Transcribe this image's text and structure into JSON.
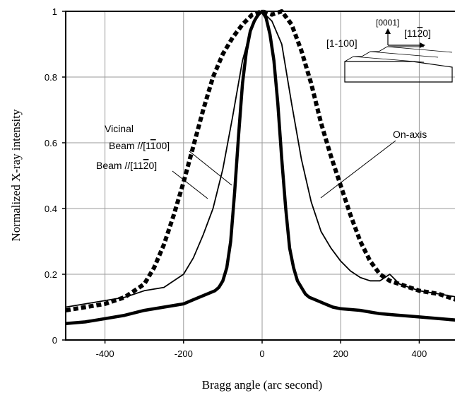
{
  "chart_data": {
    "type": "line",
    "xlabel": "Bragg angle (arc second)",
    "ylabel": "Normalized   X-ray   intensity",
    "xlim": [
      -500,
      500
    ],
    "ylim": [
      0,
      1
    ],
    "x_ticks": [
      -400,
      -200,
      0,
      200,
      400
    ],
    "x_tick_labels": [
      "-400",
      "-200",
      "0",
      "200",
      "400"
    ],
    "y_ticks": [
      0,
      0.2,
      0.4,
      0.6,
      0.8,
      1
    ],
    "y_tick_labels": [
      "0",
      "0.2",
      "0.4",
      "0.6",
      "0.8",
      "1"
    ],
    "grid": true,
    "series": [
      {
        "name": "On-axis",
        "style": "thick-solid",
        "x": [
          -500,
          -450,
          -400,
          -350,
          -300,
          -250,
          -200,
          -180,
          -160,
          -140,
          -120,
          -110,
          -100,
          -90,
          -80,
          -70,
          -60,
          -50,
          -40,
          -30,
          -20,
          -10,
          0,
          10,
          20,
          30,
          40,
          50,
          60,
          70,
          80,
          90,
          100,
          110,
          120,
          140,
          160,
          180,
          200,
          250,
          300,
          350,
          400,
          450,
          500
        ],
        "y": [
          0.05,
          0.055,
          0.065,
          0.075,
          0.09,
          0.1,
          0.11,
          0.12,
          0.13,
          0.14,
          0.15,
          0.16,
          0.18,
          0.22,
          0.3,
          0.45,
          0.62,
          0.78,
          0.88,
          0.94,
          0.97,
          0.99,
          1.0,
          0.98,
          0.93,
          0.85,
          0.72,
          0.55,
          0.4,
          0.28,
          0.22,
          0.18,
          0.16,
          0.14,
          0.13,
          0.12,
          0.11,
          0.1,
          0.095,
          0.09,
          0.08,
          0.075,
          0.07,
          0.065,
          0.06
        ]
      },
      {
        "name": "Beam //[1-100]",
        "style": "thin-solid",
        "x": [
          -500,
          -450,
          -400,
          -350,
          -300,
          -250,
          -200,
          -175,
          -150,
          -125,
          -100,
          -75,
          -50,
          -25,
          0,
          25,
          50,
          75,
          100,
          125,
          150,
          175,
          200,
          225,
          250,
          275,
          300,
          325,
          350,
          400,
          450,
          500
        ],
        "y": [
          0.1,
          0.11,
          0.12,
          0.13,
          0.15,
          0.16,
          0.2,
          0.25,
          0.32,
          0.4,
          0.52,
          0.68,
          0.85,
          0.96,
          1.0,
          0.97,
          0.9,
          0.72,
          0.55,
          0.42,
          0.33,
          0.28,
          0.24,
          0.21,
          0.19,
          0.18,
          0.18,
          0.2,
          0.17,
          0.15,
          0.14,
          0.13
        ]
      },
      {
        "name": "Beam //[11-20]",
        "style": "thick-dashed",
        "x": [
          -500,
          -450,
          -400,
          -350,
          -300,
          -275,
          -250,
          -225,
          -200,
          -175,
          -150,
          -125,
          -100,
          -75,
          -50,
          -25,
          0,
          25,
          50,
          75,
          100,
          125,
          150,
          175,
          200,
          225,
          250,
          275,
          300,
          325,
          350,
          400,
          450,
          500
        ],
        "y": [
          0.09,
          0.1,
          0.11,
          0.13,
          0.17,
          0.22,
          0.29,
          0.38,
          0.48,
          0.59,
          0.7,
          0.8,
          0.87,
          0.92,
          0.96,
          0.99,
          1.0,
          0.99,
          1.0,
          0.96,
          0.88,
          0.78,
          0.66,
          0.56,
          0.47,
          0.38,
          0.3,
          0.24,
          0.2,
          0.18,
          0.17,
          0.15,
          0.14,
          0.12
        ]
      }
    ],
    "annotations": {
      "vicinal": "Vicinal",
      "beam_1100": "Beam //[1",
      "beam_1100_bar": "1",
      "beam_1100_end": "00]",
      "beam_1120": "Beam //[11",
      "beam_1120_bar": "2",
      "beam_1120_end": "0]",
      "on_axis": "On-axis",
      "inset_0001": "[0001]",
      "inset_1100": "[1-100]",
      "inset_1120": "[11",
      "inset_1120_bar": "2",
      "inset_1120_end": "0]"
    }
  }
}
